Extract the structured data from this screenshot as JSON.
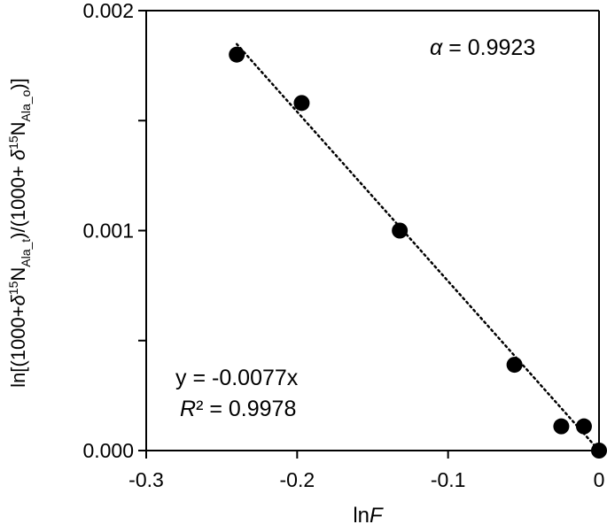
{
  "chart_data": {
    "type": "scatter",
    "x": [
      -0.24,
      -0.197,
      -0.132,
      -0.056,
      -0.025,
      -0.01,
      0.0
    ],
    "y": [
      0.0018,
      0.00158,
      0.001,
      0.00039,
      0.00011,
      0.00011,
      0.0
    ],
    "xlim": [
      -0.3,
      0
    ],
    "ylim": [
      0,
      0.002
    ],
    "x_ticks": [
      "-0.3",
      "-0.2",
      "-0.1",
      "0"
    ],
    "y_ticks": [
      "0.000",
      "0.001",
      "0.002"
    ],
    "x_tick_values": [
      -0.3,
      -0.2,
      -0.1,
      0
    ],
    "y_tick_values": [
      0,
      0.001,
      0.002
    ],
    "xlabel": {
      "prefix": "ln",
      "italic": "F"
    },
    "ylabel": {
      "p1": "ln[(1000+",
      "delta1": "δ",
      "sup1": "15",
      "p2": "N",
      "sub1": "Ala_t",
      "p3": ")/(1000+ ",
      "delta2": "δ",
      "sup2": "15",
      "p4": "N",
      "sub2": "Ala_o",
      "p5": ")]"
    },
    "trendline": {
      "slope": -0.0077,
      "intercept": 0,
      "style": "dotted",
      "x_range": [
        -0.24,
        0
      ]
    },
    "annotations": {
      "alpha_symbol": "α",
      "alpha_rest": " = 0.9923",
      "equation": "y = -0.0077x",
      "r2_symbol": "R",
      "r2_rest": "² = 0.9978"
    },
    "marker_color": "#000000",
    "grid": false,
    "legend": "none"
  }
}
